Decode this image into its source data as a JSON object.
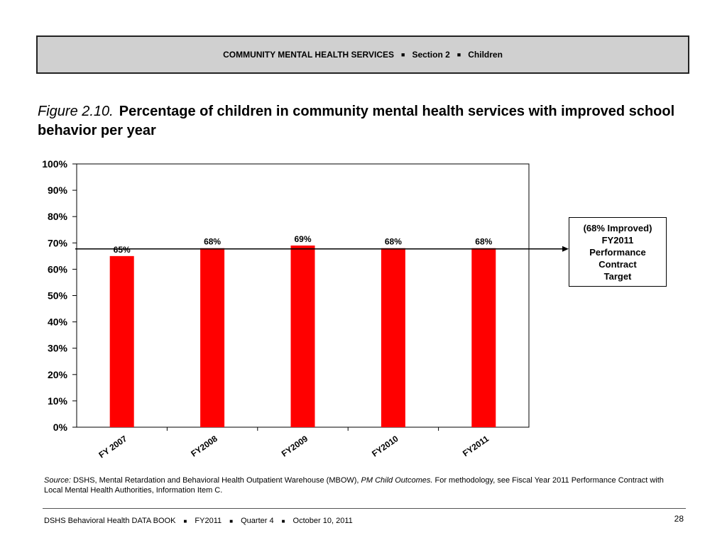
{
  "header": {
    "section_title": "COMMUNITY MENTAL HEALTH SERVICES",
    "separator": "■",
    "section": "Section 2",
    "topic": "Children"
  },
  "figure": {
    "label": "Figure 2.10.",
    "title": "Percentage of children in community mental health services with improved school behavior per year"
  },
  "chart_data": {
    "type": "bar",
    "categories": [
      "FY 2007",
      "FY2008",
      "FY2009",
      "FY2010",
      "FY2011"
    ],
    "values": [
      65,
      68,
      69,
      68,
      68
    ],
    "data_labels": [
      "65%",
      "68%",
      "69%",
      "68%",
      "68%"
    ],
    "ylim": [
      0,
      100
    ],
    "y_ticks": [
      0,
      10,
      20,
      30,
      40,
      50,
      60,
      70,
      80,
      90,
      100
    ],
    "y_tick_labels": [
      "0%",
      "10%",
      "20%",
      "30%",
      "40%",
      "50%",
      "60%",
      "70%",
      "80%",
      "90%",
      "100%"
    ],
    "bar_color": "#ff0000",
    "target_value": 68,
    "target_annotation": [
      "(68% Improved)",
      "FY2011",
      "Performance",
      "Contract",
      "Target"
    ],
    "grid": false,
    "xlabel": "",
    "ylabel": ""
  },
  "source": {
    "label": "Source:",
    "text1": "DSHS, Mental Retardation and Behavioral Health Outpatient Warehouse (MBOW),",
    "italic": "PM Child Outcomes.",
    "text2": "For methodology, see Fiscal Year 2011 Performance Contract with Local Mental Health Authorities, Information Item C."
  },
  "footer": {
    "book": "DSHS Behavioral Health DATA BOOK",
    "fiscal_year": "FY2011",
    "quarter": "Quarter 4",
    "date": "October 10, 2011",
    "separator": "■",
    "page": "28"
  }
}
